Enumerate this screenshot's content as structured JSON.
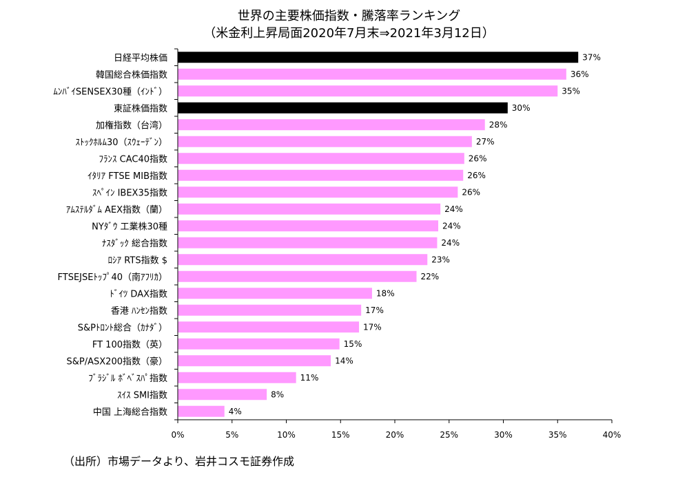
{
  "title": "世界の主要株価指数・騰落率ランキング",
  "subtitle": "（米金利上昇局面2020年7月末⇒2021年3月12日）",
  "source": "（出所）市場データより、岩井コスモ証券作成",
  "colors": {
    "highlight": "#000000",
    "default": "#ff99ff",
    "axis": "#000000"
  },
  "chart_data": {
    "type": "bar",
    "orientation": "horizontal",
    "title": "世界の主要株価指数・騰落率ランキング",
    "subtitle": "（米金利上昇局面2020年7月末⇒2021年3月12日）",
    "xlim": [
      0,
      40
    ],
    "ticks": [
      0,
      5,
      10,
      15,
      20,
      25,
      30,
      35,
      40
    ],
    "tick_labels": [
      "0%",
      "5%",
      "10%",
      "15%",
      "20%",
      "25%",
      "30%",
      "35%",
      "40%"
    ],
    "grid": false,
    "categories": [
      "日経平均株価",
      "韓国総合株価指数",
      "ﾑﾝﾊﾞｲSENSEX30種（ｲﾝﾄﾞ）",
      "東証株価指数",
      "加権指数（台湾）",
      "ｽﾄｯｸﾎﾙﾑ30（ｽｳｪｰﾃﾞﾝ）",
      "ﾌﾗﾝｽ CAC40指数",
      "ｲﾀﾘｱ FTSE MIB指数",
      "ｽﾍﾟｲﾝ IBEX35指数",
      "ｱﾑｽﾃﾙﾀﾞﾑ AEX指数（蘭）",
      "NYﾀﾞｳ 工業株30種",
      "ﾅｽﾀﾞｯｸ 総合指数",
      "ﾛｼｱ RTS指数 $",
      "FTSEJSEﾄｯﾌﾟ40（南ｱﾌﾘｶ）",
      "ﾄﾞｲﾂ DAX指数",
      "香港 ﾊﾝｾﾝ指数",
      "S&Pﾄﾛﾝﾄ総合（ｶﾅﾀﾞ）",
      "FT 100指数（英）",
      "S&P/ASX200指数（豪）",
      "ﾌﾞﾗｼﾞﾙ ﾎﾞﾍﾞｽﾊﾟ指数",
      "ｽｲｽ SMI指数",
      "中国 上海総合指数"
    ],
    "values": [
      36.9,
      35.8,
      35.0,
      30.4,
      28.3,
      27.1,
      26.4,
      26.3,
      25.8,
      24.2,
      24.0,
      23.9,
      23.0,
      22.0,
      17.9,
      16.9,
      16.7,
      14.9,
      14.1,
      10.9,
      8.2,
      4.3
    ],
    "value_labels": [
      "37%",
      "36%",
      "35%",
      "30%",
      "28%",
      "27%",
      "26%",
      "26%",
      "26%",
      "24%",
      "24%",
      "24%",
      "23%",
      "22%",
      "18%",
      "17%",
      "17%",
      "15%",
      "14%",
      "11%",
      "8%",
      "4%"
    ],
    "highlight": [
      true,
      false,
      false,
      true,
      false,
      false,
      false,
      false,
      false,
      false,
      false,
      false,
      false,
      false,
      false,
      false,
      false,
      false,
      false,
      false,
      false,
      false
    ]
  }
}
